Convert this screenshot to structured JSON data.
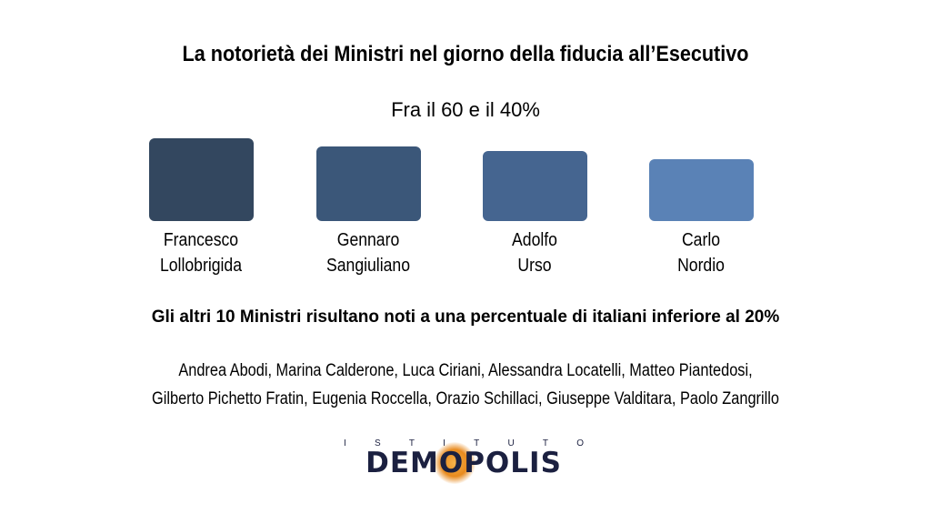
{
  "title": "La notorietà dei Ministri nel giorno della fiducia all’Esecutivo",
  "subtitle": "Fra il 60 e il 40%",
  "chart_data": {
    "type": "bar",
    "title": "Fra il 60 e il 40%",
    "categories": [
      [
        "Francesco",
        "Lollobrigida"
      ],
      [
        "Gennaro",
        "Sangiuliano"
      ],
      [
        "Adolfo",
        "Urso"
      ],
      [
        "Carlo",
        "Nordio"
      ]
    ],
    "values": [
      60,
      54,
      51,
      45
    ],
    "colors": [
      "#33475f",
      "#3b5779",
      "#456590",
      "#5a82b6"
    ],
    "ylim": [
      0,
      60
    ],
    "grid": false,
    "legend": "none"
  },
  "note": "Gli altri 10 Ministri risultano noti a una percentuale di italiani inferiore al 20%",
  "other_ministers": [
    "Andrea Abodi, Marina Calderone, Luca Ciriani, Alessandra Locatelli, Matteo Piantedosi,",
    "Gilberto Pichetto Fratin, Eugenia Roccella, Orazio Schillaci, Giuseppe Valditara, Paolo Zangrillo"
  ],
  "logo": {
    "top_letters": [
      "I",
      "S",
      "T",
      "I",
      "T",
      "U",
      "T",
      "O"
    ],
    "name": "DEMOPOLIS"
  }
}
